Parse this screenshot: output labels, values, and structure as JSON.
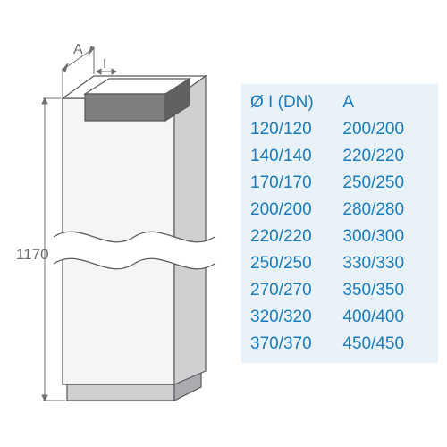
{
  "diagram": {
    "height_label": "1170",
    "width_label": "A",
    "inner_label": "I",
    "stroke_color": "#58595b",
    "stroke_width": 1.2,
    "fill_light": "#ffffff",
    "fill_face": "#f5f5f5",
    "fill_shadow": "#cfd0d1",
    "fill_dark": "#a9abae",
    "fill_inner": "#7d7e80",
    "dim_color": "#6d6e71",
    "wave_fill": "#ffffff"
  },
  "table": {
    "bg_color": "#e9f2f9",
    "text_color": "#1a7bbd",
    "fontsize": 19,
    "headers": {
      "col1": "Ø I (DN)",
      "col2": "A"
    },
    "rows": [
      {
        "dn": "120/120",
        "a": "200/200"
      },
      {
        "dn": "140/140",
        "a": "220/220"
      },
      {
        "dn": "170/170",
        "a": "250/250"
      },
      {
        "dn": "200/200",
        "a": "280/280"
      },
      {
        "dn": "220/220",
        "a": "300/300"
      },
      {
        "dn": "250/250",
        "a": "330/330"
      },
      {
        "dn": "270/270",
        "a": "350/350"
      },
      {
        "dn": "320/320",
        "a": "400/400"
      },
      {
        "dn": "370/370",
        "a": "450/450"
      }
    ]
  }
}
